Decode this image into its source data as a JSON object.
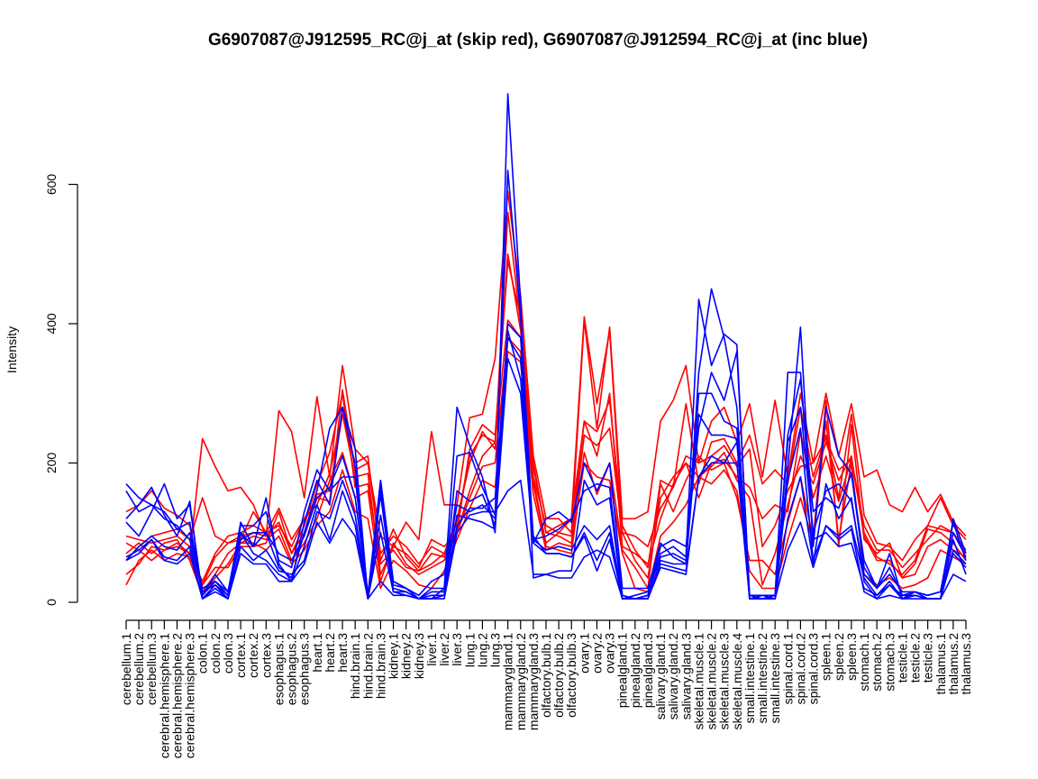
{
  "chart_data": {
    "type": "line",
    "title": "G6907087@J912595_RC@j_at (skip red), G6907087@J912594_RC@j_at (inc blue)",
    "xlabel": "",
    "ylabel": "Intensity",
    "ylim": [
      0,
      750
    ],
    "yticks": [
      0,
      200,
      400,
      600
    ],
    "grid": false,
    "legend": "none",
    "colors": {
      "skip": "#ff0000",
      "inc": "#0000ff",
      "axis": "#000000"
    },
    "categories": [
      "cerebellum.1",
      "cerebellum.2",
      "cerebellum.3",
      "cerebral.hemisphere.1",
      "cerebral.hemisphere.2",
      "cerebral.hemisphere.3",
      "colon.1",
      "colon.2",
      "colon.3",
      "cortex.1",
      "cortex.2",
      "cortex.3",
      "esophagus.1",
      "esophagus.2",
      "esophagus.3",
      "heart.1",
      "heart.2",
      "heart.3",
      "hind.brain.1",
      "hind.brain.2",
      "hind.brain.3",
      "kidney.1",
      "kidney.2",
      "kidney.3",
      "liver.1",
      "liver.2",
      "liver.3",
      "lung.1",
      "lung.2",
      "lung.3",
      "mammarygland.1",
      "mammarygland.2",
      "mammarygland.3",
      "olfactory.bulb.1",
      "olfactory.bulb.2",
      "olfactory.bulb.3",
      "ovary.1",
      "ovary.2",
      "ovary.3",
      "pinealgland.1",
      "pinealgland.2",
      "pinealgland.3",
      "salivary.gland.1",
      "salivary.gland.2",
      "salivary.gland.3",
      "skeletal.muscle.1",
      "skeletal.muscle.2",
      "skeletal.muscle.3",
      "skeletal.muscle.4",
      "small.intestine.1",
      "small.intestine.2",
      "small.intestine.3",
      "spinal.cord.1",
      "spinal.cord.2",
      "spinal.cord.3",
      "spleen.1",
      "spleen.2",
      "spleen.3",
      "stomach.1",
      "stomach.2",
      "stomach.3",
      "testicle.1",
      "testicle.2",
      "testicle.3",
      "thalamus.1",
      "thalamus.2",
      "thalamus.3"
    ],
    "series": [
      {
        "group": "skip",
        "values": [
          40,
          55,
          80,
          75,
          85,
          70,
          235,
          195,
          160,
          165,
          140,
          95,
          275,
          245,
          150,
          295,
          180,
          340,
          220,
          200,
          95,
          80,
          115,
          90,
          245,
          140,
          140,
          265,
          270,
          350,
          590,
          440,
          210,
          120,
          120,
          100,
          405,
          250,
          395,
          120,
          120,
          130,
          260,
          290,
          340,
          200,
          260,
          280,
          230,
          285,
          180,
          290,
          180,
          300,
          200,
          300,
          210,
          285,
          180,
          190,
          140,
          130,
          165,
          130,
          155,
          115,
          95
        ]
      },
      {
        "group": "skip",
        "values": [
          60,
          80,
          95,
          100,
          105,
          90,
          150,
          95,
          85,
          90,
          130,
          100,
          110,
          80,
          120,
          140,
          185,
          270,
          180,
          185,
          40,
          80,
          70,
          50,
          90,
          80,
          100,
          220,
          255,
          240,
          490,
          410,
          195,
          100,
          110,
          120,
          410,
          285,
          390,
          100,
          95,
          80,
          135,
          165,
          285,
          170,
          230,
          235,
          200,
          240,
          170,
          190,
          170,
          280,
          180,
          240,
          150,
          270,
          125,
          85,
          80,
          60,
          90,
          110,
          150,
          110,
          90
        ]
      },
      {
        "group": "skip",
        "values": [
          25,
          60,
          75,
          60,
          70,
          65,
          25,
          50,
          50,
          80,
          80,
          85,
          130,
          70,
          110,
          170,
          215,
          300,
          165,
          170,
          55,
          75,
          50,
          45,
          55,
          70,
          100,
          150,
          195,
          200,
          380,
          360,
          175,
          85,
          100,
          95,
          260,
          210,
          300,
          80,
          70,
          55,
          120,
          170,
          200,
          150,
          200,
          205,
          180,
          165,
          120,
          140,
          130,
          245,
          150,
          210,
          145,
          205,
          110,
          75,
          75,
          50,
          70,
          90,
          110,
          100,
          75
        ]
      },
      {
        "group": "skip",
        "values": [
          85,
          75,
          60,
          75,
          80,
          70,
          30,
          70,
          95,
          100,
          110,
          100,
          135,
          90,
          120,
          150,
          145,
          305,
          190,
          200,
          70,
          95,
          80,
          55,
          80,
          70,
          120,
          200,
          245,
          220,
          560,
          400,
          180,
          110,
          100,
          120,
          260,
          245,
          290,
          110,
          75,
          50,
          175,
          165,
          210,
          200,
          210,
          225,
          195,
          220,
          80,
          110,
          160,
          195,
          200,
          235,
          190,
          205,
          100,
          65,
          55,
          40,
          60,
          110,
          105,
          100,
          70
        ]
      },
      {
        "group": "skip",
        "values": [
          95,
          90,
          85,
          90,
          95,
          80,
          25,
          65,
          85,
          95,
          100,
          95,
          115,
          70,
          100,
          155,
          160,
          270,
          200,
          210,
          60,
          105,
          65,
          45,
          70,
          65,
          115,
          210,
          240,
          230,
          500,
          390,
          200,
          100,
          95,
          85,
          240,
          225,
          250,
          100,
          60,
          35,
          150,
          180,
          200,
          180,
          195,
          215,
          175,
          150,
          25,
          70,
          140,
          210,
          170,
          230,
          175,
          210,
          95,
          60,
          60,
          35,
          55,
          105,
          100,
          85,
          60
        ]
      },
      {
        "group": "skip",
        "values": [
          130,
          140,
          160,
          135,
          125,
          110,
          15,
          40,
          70,
          85,
          95,
          90,
          105,
          60,
          85,
          120,
          175,
          215,
          150,
          160,
          30,
          85,
          55,
          40,
          50,
          60,
          100,
          160,
          210,
          230,
          405,
          380,
          170,
          80,
          75,
          70,
          215,
          155,
          200,
          75,
          50,
          20,
          170,
          130,
          175,
          210,
          190,
          200,
          150,
          60,
          60,
          40,
          115,
          180,
          90,
          290,
          80,
          255,
          90,
          70,
          85,
          35,
          40,
          80,
          90,
          75,
          65
        ]
      },
      {
        "group": "skip",
        "values": [
          70,
          85,
          70,
          85,
          90,
          60,
          10,
          35,
          55,
          85,
          85,
          75,
          95,
          55,
          75,
          110,
          130,
          190,
          130,
          120,
          20,
          60,
          45,
          25,
          20,
          45,
          90,
          135,
          175,
          165,
          360,
          345,
          155,
          75,
          85,
          80,
          200,
          180,
          175,
          70,
          20,
          15,
          95,
          115,
          140,
          180,
          170,
          190,
          160,
          45,
          20,
          20,
          90,
          150,
          85,
          260,
          90,
          200,
          40,
          25,
          35,
          20,
          25,
          35,
          75,
          65,
          55
        ]
      },
      {
        "group": "inc",
        "values": [
          170,
          150,
          140,
          130,
          105,
          115,
          10,
          30,
          10,
          115,
          80,
          150,
          55,
          30,
          115,
          175,
          140,
          280,
          220,
          5,
          175,
          30,
          20,
          5,
          20,
          20,
          280,
          225,
          180,
          100,
          730,
          430,
          35,
          40,
          45,
          45,
          175,
          140,
          150,
          5,
          5,
          10,
          80,
          90,
          80,
          250,
          330,
          290,
          360,
          10,
          5,
          10,
          330,
          330,
          90,
          100,
          80,
          85,
          20,
          10,
          30,
          5,
          15,
          5,
          5,
          120,
          70
        ]
      },
      {
        "group": "inc",
        "values": [
          120,
          140,
          165,
          125,
          95,
          145,
          5,
          25,
          5,
          100,
          80,
          100,
          50,
          35,
          100,
          160,
          250,
          280,
          195,
          10,
          165,
          25,
          20,
          5,
          15,
          15,
          210,
          215,
          165,
          125,
          620,
          410,
          90,
          95,
          105,
          120,
          160,
          170,
          165,
          10,
          5,
          10,
          70,
          80,
          65,
          435,
          340,
          385,
          370,
          5,
          5,
          5,
          195,
          395,
          80,
          280,
          210,
          185,
          60,
          20,
          70,
          5,
          5,
          5,
          5,
          75,
          55
        ]
      },
      {
        "group": "inc",
        "values": [
          115,
          95,
          130,
          170,
          120,
          140,
          10,
          40,
          15,
          110,
          110,
          130,
          60,
          50,
          130,
          190,
          160,
          180,
          180,
          5,
          155,
          15,
          15,
          5,
          10,
          10,
          160,
          145,
          155,
          110,
          400,
          380,
          85,
          120,
          130,
          115,
          200,
          160,
          200,
          20,
          20,
          20,
          85,
          65,
          55,
          330,
          450,
          380,
          280,
          5,
          10,
          5,
          240,
          320,
          130,
          150,
          135,
          185,
          50,
          20,
          50,
          10,
          15,
          10,
          15,
          100,
          65
        ]
      },
      {
        "group": "inc",
        "values": [
          60,
          80,
          95,
          80,
          75,
          100,
          20,
          30,
          15,
          90,
          100,
          100,
          70,
          60,
          95,
          150,
          165,
          210,
          150,
          10,
          175,
          30,
          20,
          10,
          30,
          40,
          140,
          130,
          140,
          120,
          380,
          350,
          90,
          75,
          80,
          75,
          110,
          90,
          110,
          5,
          10,
          15,
          65,
          70,
          60,
          300,
          300,
          260,
          250,
          10,
          10,
          10,
          230,
          280,
          100,
          160,
          170,
          145,
          40,
          20,
          40,
          15,
          15,
          10,
          15,
          115,
          60
        ]
      },
      {
        "group": "inc",
        "values": [
          65,
          75,
          90,
          65,
          60,
          80,
          5,
          20,
          5,
          80,
          60,
          75,
          45,
          40,
          60,
          130,
          120,
          175,
          125,
          5,
          125,
          20,
          15,
          5,
          5,
          20,
          125,
          120,
          115,
          105,
          350,
          300,
          85,
          70,
          70,
          65,
          100,
          60,
          100,
          5,
          5,
          5,
          60,
          55,
          55,
          270,
          240,
          240,
          235,
          5,
          5,
          5,
          175,
          250,
          60,
          110,
          95,
          110,
          35,
          10,
          25,
          10,
          10,
          5,
          5,
          70,
          50
        ]
      },
      {
        "group": "inc",
        "values": [
          160,
          130,
          140,
          120,
          110,
          90,
          15,
          25,
          10,
          100,
          70,
          60,
          40,
          30,
          80,
          140,
          90,
          160,
          110,
          5,
          100,
          15,
          10,
          5,
          5,
          10,
          110,
          135,
          135,
          150,
          390,
          320,
          95,
          70,
          70,
          65,
          95,
          45,
          90,
          5,
          5,
          5,
          55,
          50,
          45,
          180,
          200,
          200,
          230,
          5,
          5,
          5,
          120,
          180,
          55,
          170,
          120,
          150,
          30,
          5,
          25,
          5,
          10,
          5,
          5,
          90,
          40
        ]
      },
      {
        "group": "inc",
        "values": [
          60,
          70,
          90,
          60,
          55,
          70,
          5,
          15,
          5,
          70,
          55,
          55,
          30,
          30,
          55,
          115,
          85,
          120,
          95,
          5,
          30,
          10,
          10,
          5,
          5,
          5,
          100,
          125,
          130,
          130,
          160,
          175,
          40,
          40,
          35,
          35,
          65,
          75,
          65,
          5,
          5,
          5,
          50,
          45,
          40,
          180,
          210,
          200,
          200,
          5,
          5,
          5,
          75,
          115,
          50,
          110,
          90,
          105,
          15,
          5,
          10,
          5,
          10,
          5,
          5,
          40,
          30
        ]
      }
    ]
  }
}
